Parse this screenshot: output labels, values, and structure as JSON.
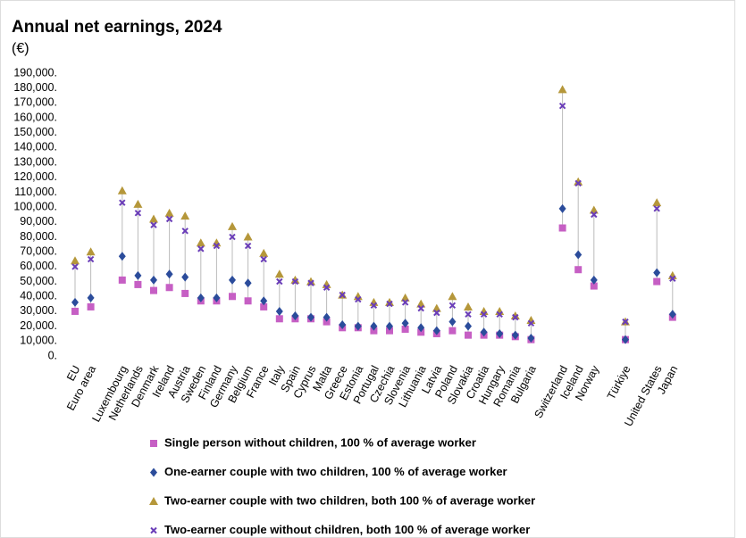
{
  "chart_data": {
    "type": "dot",
    "title": "Annual net earnings, 2024",
    "subtitle": "(€)",
    "categories": [
      "EU",
      "Euro area",
      null,
      "Luxembourg",
      "Netherlands",
      "Denmark",
      "Ireland",
      "Austria",
      "Sweden",
      "Finland",
      "Germany",
      "Belgium",
      "France",
      "Italy",
      "Spain",
      "Cyprus",
      "Malta",
      "Greece",
      "Estonia",
      "Portugal",
      "Czechia",
      "Slovenia",
      "Lithuania",
      "Latvia",
      "Poland",
      "Slovakia",
      "Croatia",
      "Hungary",
      "Romania",
      "Bulgaria",
      null,
      "Switzerland",
      "Iceland",
      "Norway",
      null,
      "Türkiye",
      null,
      "United States",
      "Japan"
    ],
    "series": [
      {
        "name": "Single person without children, 100 % of average worker",
        "color": "#c65fc4",
        "marker": "square",
        "values": [
          30000,
          33000,
          null,
          51000,
          48000,
          44000,
          46000,
          42000,
          37000,
          37000,
          40000,
          37000,
          33000,
          25000,
          25000,
          25000,
          23000,
          19000,
          19000,
          17000,
          17000,
          18000,
          16000,
          15000,
          17000,
          14000,
          14000,
          14000,
          13000,
          11000,
          null,
          86000,
          58000,
          47000,
          null,
          11000,
          null,
          50000,
          26000
        ]
      },
      {
        "name": "One-earner couple with two children, 100 % of average worker",
        "color": "#2b4c9b",
        "marker": "diamond",
        "values": [
          36000,
          39000,
          null,
          67000,
          54000,
          51000,
          55000,
          53000,
          39000,
          39000,
          51000,
          49000,
          37000,
          30000,
          27000,
          26000,
          26000,
          21000,
          20000,
          20000,
          20000,
          22000,
          19000,
          17000,
          23000,
          20000,
          16000,
          15000,
          14000,
          12000,
          null,
          99000,
          68000,
          51000,
          null,
          11000,
          null,
          56000,
          28000
        ]
      },
      {
        "name": "Two-earner couple with two children, both 100 % of average worker",
        "color": "#b5973a",
        "marker": "triangle",
        "values": [
          64000,
          70000,
          null,
          111000,
          102000,
          92000,
          96000,
          94000,
          76000,
          76000,
          87000,
          80000,
          69000,
          55000,
          51000,
          50000,
          48000,
          41000,
          40000,
          36000,
          36000,
          39000,
          35000,
          32000,
          40000,
          33000,
          30000,
          30000,
          27000,
          24000,
          null,
          179000,
          117000,
          98000,
          null,
          23000,
          null,
          103000,
          54000
        ]
      },
      {
        "name": "Two-earner couple without children, both 100 % of average worker",
        "color": "#6a3db8",
        "marker": "cross",
        "values": [
          60000,
          65000,
          null,
          103000,
          96000,
          88000,
          92000,
          84000,
          72000,
          74000,
          80000,
          74000,
          65000,
          50000,
          50000,
          49000,
          46000,
          41000,
          38000,
          34000,
          35000,
          36000,
          32000,
          29000,
          34000,
          28000,
          28000,
          28000,
          26000,
          22000,
          null,
          168000,
          116000,
          95000,
          null,
          23000,
          null,
          99000,
          52000
        ]
      }
    ],
    "ylim": [
      0,
      190000
    ],
    "yticks": [
      {
        "value": 0,
        "label": "0."
      },
      {
        "value": 10000,
        "label": "10,000."
      },
      {
        "value": 20000,
        "label": "20,000."
      },
      {
        "value": 30000,
        "label": "30,000."
      },
      {
        "value": 40000,
        "label": "40,000."
      },
      {
        "value": 50000,
        "label": "50,000."
      },
      {
        "value": 60000,
        "label": "60,000."
      },
      {
        "value": 70000,
        "label": "70,000."
      },
      {
        "value": 80000,
        "label": "80,000."
      },
      {
        "value": 90000,
        "label": "90,000."
      },
      {
        "value": 100000,
        "label": "100,000."
      },
      {
        "value": 110000,
        "label": "110,000."
      },
      {
        "value": 120000,
        "label": "120,000."
      },
      {
        "value": 130000,
        "label": "130,000."
      },
      {
        "value": 140000,
        "label": "140,000."
      },
      {
        "value": 150000,
        "label": "150,000."
      },
      {
        "value": 160000,
        "label": "160,000."
      },
      {
        "value": 170000,
        "label": "170,000."
      },
      {
        "value": 180000,
        "label": "180,000."
      },
      {
        "value": 190000,
        "label": "190,000."
      }
    ],
    "grid": false
  }
}
